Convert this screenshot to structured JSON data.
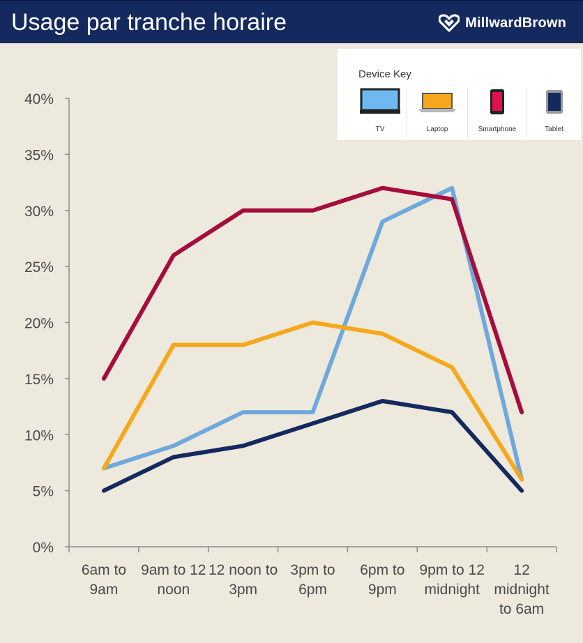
{
  "header": {
    "title": "Usage par tranche horaire",
    "brand": "MillwardBrown"
  },
  "legend": {
    "title": "Device Key",
    "items": [
      {
        "label": "TV",
        "icon": "tv-icon",
        "color": "#6fa8dc"
      },
      {
        "label": "Laptop",
        "icon": "laptop-icon",
        "color": "#f6a81c"
      },
      {
        "label": "Smartphone",
        "icon": "smartphone-icon",
        "color": "#a50d3c"
      },
      {
        "label": "Tablet",
        "icon": "tablet-icon",
        "color": "#14295e"
      }
    ]
  },
  "chart_data": {
    "type": "line",
    "title": "",
    "xlabel": "",
    "ylabel": "",
    "ylim": [
      0,
      40
    ],
    "yticks": [
      "0%",
      "5%",
      "10%",
      "15%",
      "20%",
      "25%",
      "30%",
      "35%",
      "40%"
    ],
    "grid": false,
    "legend_position": "top-right",
    "categories": [
      [
        "6am to",
        "9am"
      ],
      [
        "9am to 12",
        "noon"
      ],
      [
        "12 noon to",
        "3pm"
      ],
      [
        "3pm to",
        "6pm"
      ],
      [
        "6pm to",
        "9pm"
      ],
      [
        "9pm to 12",
        "midnight"
      ],
      [
        "12",
        "midnight",
        "to 6am"
      ]
    ],
    "series": [
      {
        "name": "TV",
        "color": "#6fa8dc",
        "values": [
          7,
          9,
          12,
          12,
          29,
          32,
          6
        ]
      },
      {
        "name": "Laptop",
        "color": "#f6a81c",
        "values": [
          7,
          18,
          18,
          20,
          19,
          16,
          6
        ]
      },
      {
        "name": "Smartphone",
        "color": "#a50d3c",
        "values": [
          15,
          26,
          30,
          30,
          32,
          31,
          12
        ]
      },
      {
        "name": "Tablet",
        "color": "#14295e",
        "values": [
          5,
          8,
          9,
          11,
          13,
          12,
          5
        ]
      }
    ]
  }
}
